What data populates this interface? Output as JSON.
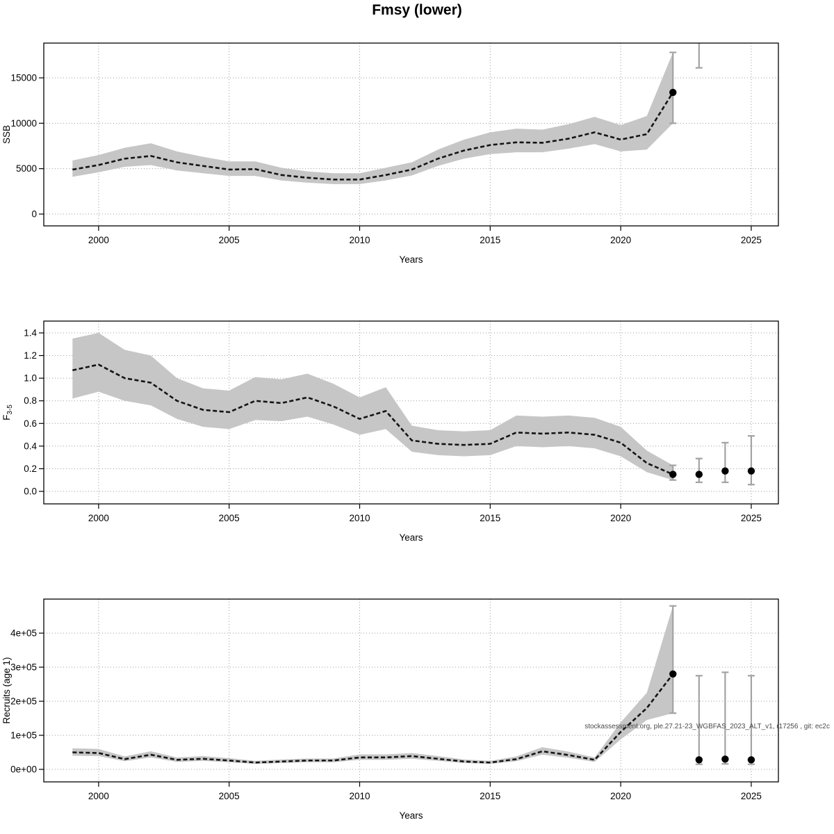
{
  "title": "Fmsy (lower)",
  "watermark": "stockassessment.org, ple.27.21-23_WGBFAS_2023_ALT_v1, r17256 , git: ec2c",
  "colors": {
    "band": "#c6c6c6",
    "line": "#141414",
    "point": "#000000",
    "errorbar": "#a3a3a3",
    "grid": "#999999",
    "axis": "#000000",
    "watermark": "#4a4a4a"
  },
  "chart_data": [
    {
      "type": "line",
      "name": "SSB",
      "title": "",
      "xlabel": "Years",
      "ylabel": "SSB",
      "ylabel_sub": "",
      "legend": "none",
      "grid": "dotted",
      "xlim": [
        1997.9,
        2026.04
      ],
      "ylim": [
        -1301,
        18826
      ],
      "xticks": [
        2000,
        2005,
        2010,
        2015,
        2020,
        2025
      ],
      "yticks": [
        0,
        5000,
        10000,
        15000
      ],
      "ytick_labels": [
        "0",
        "5000",
        "10000",
        "15000"
      ],
      "x": [
        1999,
        2000,
        2001,
        2002,
        2003,
        2004,
        2005,
        2006,
        2007,
        2008,
        2009,
        2010,
        2011,
        2012,
        2013,
        2014,
        2015,
        2016,
        2017,
        2018,
        2019,
        2020,
        2021,
        2022
      ],
      "mean": [
        4900,
        5400,
        6100,
        6400,
        5700,
        5300,
        4900,
        4950,
        4300,
        4000,
        3800,
        3800,
        4300,
        4900,
        6100,
        7000,
        7600,
        7900,
        7850,
        8300,
        9000,
        8200,
        8800,
        13400
      ],
      "lower": [
        4100,
        4600,
        5200,
        5400,
        4800,
        4500,
        4200,
        4200,
        3700,
        3450,
        3300,
        3300,
        3700,
        4250,
        5300,
        6100,
        6600,
        6800,
        6800,
        7200,
        7700,
        6900,
        7100,
        10000
      ],
      "upper": [
        5900,
        6500,
        7300,
        7800,
        6900,
        6300,
        5800,
        5800,
        5100,
        4700,
        4500,
        4500,
        5100,
        5700,
        7100,
        8200,
        9000,
        9400,
        9300,
        9900,
        10700,
        9800,
        10800,
        17800
      ],
      "points": [
        {
          "x": 2022,
          "y": 13400
        }
      ],
      "errorbars": [
        {
          "x": 2022,
          "lo": 10000,
          "hi": 17800
        },
        {
          "x": 2023,
          "lo": 16100,
          "hi": 19500
        }
      ]
    },
    {
      "type": "line",
      "name": "F3-5",
      "title": "",
      "xlabel": "Years",
      "ylabel": "F",
      "ylabel_sub": "3-5",
      "legend": "none",
      "grid": "dotted",
      "xlim": [
        1997.9,
        2026.04
      ],
      "ylim": [
        -0.1105,
        1.5043
      ],
      "xticks": [
        2000,
        2005,
        2010,
        2015,
        2020,
        2025
      ],
      "yticks": [
        0.0,
        0.2,
        0.4,
        0.6,
        0.8,
        1.0,
        1.2,
        1.4
      ],
      "ytick_labels": [
        "0.0",
        "0.2",
        "0.4",
        "0.6",
        "0.8",
        "1.0",
        "1.2",
        "1.4"
      ],
      "x": [
        1999,
        2000,
        2001,
        2002,
        2003,
        2004,
        2005,
        2006,
        2007,
        2008,
        2009,
        2010,
        2011,
        2012,
        2013,
        2014,
        2015,
        2016,
        2017,
        2018,
        2019,
        2020,
        2021,
        2022
      ],
      "mean": [
        1.07,
        1.12,
        1.0,
        0.96,
        0.8,
        0.72,
        0.7,
        0.8,
        0.78,
        0.83,
        0.75,
        0.64,
        0.71,
        0.45,
        0.42,
        0.41,
        0.42,
        0.52,
        0.51,
        0.52,
        0.5,
        0.43,
        0.25,
        0.15
      ],
      "lower": [
        0.82,
        0.88,
        0.8,
        0.76,
        0.64,
        0.57,
        0.55,
        0.63,
        0.62,
        0.66,
        0.59,
        0.5,
        0.55,
        0.35,
        0.32,
        0.31,
        0.32,
        0.4,
        0.39,
        0.4,
        0.38,
        0.31,
        0.17,
        0.1
      ],
      "upper": [
        1.35,
        1.4,
        1.25,
        1.2,
        1.0,
        0.91,
        0.89,
        1.01,
        0.99,
        1.04,
        0.95,
        0.83,
        0.92,
        0.58,
        0.54,
        0.53,
        0.54,
        0.67,
        0.66,
        0.67,
        0.65,
        0.57,
        0.36,
        0.23
      ],
      "points": [
        {
          "x": 2022,
          "y": 0.15
        },
        {
          "x": 2023,
          "y": 0.15
        },
        {
          "x": 2024,
          "y": 0.18
        },
        {
          "x": 2025,
          "y": 0.18
        }
      ],
      "errorbars": [
        {
          "x": 2022,
          "lo": 0.1,
          "hi": 0.23
        },
        {
          "x": 2023,
          "lo": 0.08,
          "hi": 0.29
        },
        {
          "x": 2024,
          "lo": 0.08,
          "hi": 0.43
        },
        {
          "x": 2025,
          "lo": 0.06,
          "hi": 0.49
        }
      ]
    },
    {
      "type": "line",
      "name": "Recruits (age 1)",
      "title": "",
      "xlabel": "Years",
      "ylabel": "Recruits (age 1)",
      "ylabel_sub": "",
      "legend": "none",
      "grid": "dotted",
      "xlim": [
        1997.9,
        2026.04
      ],
      "ylim": [
        -36735,
        500000
      ],
      "xticks": [
        2000,
        2005,
        2010,
        2015,
        2020,
        2025
      ],
      "yticks": [
        0,
        100000,
        200000,
        300000,
        400000
      ],
      "ytick_labels": [
        "0e+00",
        "1e+05",
        "2e+05",
        "3e+05",
        "4e+05"
      ],
      "x": [
        1999,
        2000,
        2001,
        2002,
        2003,
        2004,
        2005,
        2006,
        2007,
        2008,
        2009,
        2010,
        2011,
        2012,
        2013,
        2014,
        2015,
        2016,
        2017,
        2018,
        2019,
        2020,
        2021,
        2022
      ],
      "mean": [
        50000,
        48000,
        30000,
        43000,
        28000,
        31000,
        26000,
        20000,
        23000,
        26000,
        26000,
        35000,
        35000,
        39000,
        31000,
        23000,
        20000,
        30000,
        53000,
        42000,
        28000,
        110000,
        180000,
        280000
      ],
      "lower": [
        40000,
        39000,
        24000,
        35000,
        22000,
        25000,
        21000,
        16000,
        18500,
        21000,
        21000,
        28000,
        28000,
        31000,
        25000,
        18500,
        16000,
        24000,
        43000,
        34000,
        22000,
        88000,
        145000,
        165000
      ],
      "upper": [
        62000,
        60000,
        38000,
        53000,
        35000,
        39000,
        33000,
        25000,
        29000,
        32000,
        32000,
        44000,
        44000,
        48000,
        39000,
        29000,
        25000,
        38000,
        65000,
        52000,
        35000,
        138000,
        225000,
        480000
      ],
      "points": [
        {
          "x": 2022,
          "y": 280000
        },
        {
          "x": 2023,
          "y": 28000
        },
        {
          "x": 2024,
          "y": 30000
        },
        {
          "x": 2025,
          "y": 28000
        }
      ],
      "errorbars": [
        {
          "x": 2022,
          "lo": 165000,
          "hi": 480000
        },
        {
          "x": 2023,
          "lo": 15000,
          "hi": 275000
        },
        {
          "x": 2024,
          "lo": 16000,
          "hi": 285000
        },
        {
          "x": 2025,
          "lo": 15000,
          "hi": 275000
        }
      ]
    }
  ]
}
